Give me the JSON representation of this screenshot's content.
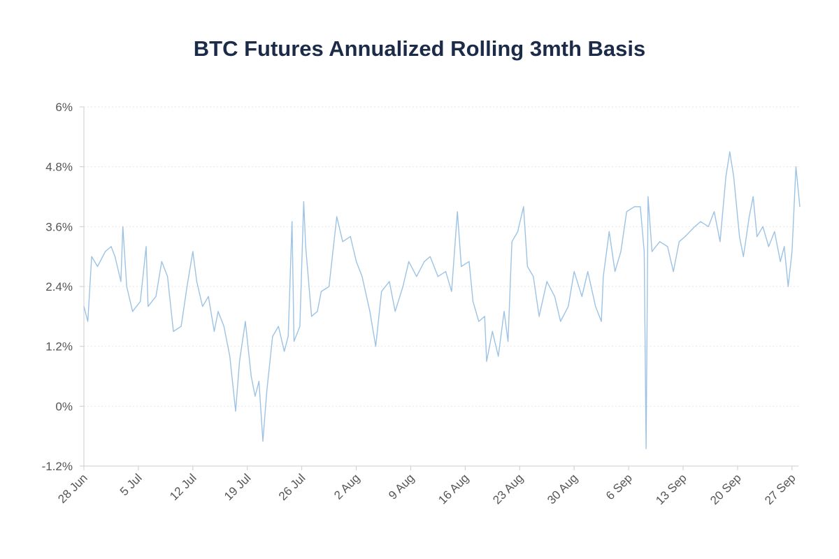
{
  "chart_data": {
    "type": "line",
    "title": "BTC Futures Annualized Rolling 3mth Basis",
    "xlabel": "",
    "ylabel": "",
    "ylim": [
      -1.2,
      6
    ],
    "yticks": [
      "-1.2%",
      "0%",
      "1.2%",
      "2.4%",
      "3.6%",
      "4.8%",
      "6%"
    ],
    "ytick_values": [
      -1.2,
      0,
      1.2,
      2.4,
      3.6,
      4.8,
      6
    ],
    "xticks": [
      "28 Jun",
      "5 Jul",
      "12 Jul",
      "19 Jul",
      "26 Jul",
      "2 Aug",
      "9 Aug",
      "16 Aug",
      "23 Aug",
      "30 Aug",
      "6 Sep",
      "13 Sep",
      "20 Sep",
      "27 Sep"
    ],
    "xtick_values": [
      "06-28 00",
      "07-05 00",
      "07-12 00",
      "07-19 00",
      "07-26 00",
      "08-02 00",
      "08-09 00",
      "08-16 00",
      "08-23 00",
      "08-30 00",
      "09-06 00",
      "09-13 00",
      "09-20 00",
      "09-27 00"
    ],
    "grid": "horizontal dotted",
    "line_color": "#9cc3e5",
    "title_color": "#1c2b48",
    "series": [
      {
        "x": [
          "06-28 00",
          "06-28 12",
          "06-29 00",
          "06-29 18",
          "06-30 18",
          "07-01 12",
          "07-02 00",
          "07-02 18",
          "07-03 00",
          "07-03 12",
          "07-04 06",
          "07-05 06",
          "07-06 00",
          "07-06 06",
          "07-07 06",
          "07-08 00",
          "07-08 18",
          "07-09 12",
          "07-10 12",
          "07-11 06",
          "07-12 00",
          "07-12 12",
          "07-13 06",
          "07-14 00",
          "07-14 18",
          "07-15 06",
          "07-16 00",
          "07-16 18",
          "07-17 12",
          "07-18 00",
          "07-18 18",
          "07-19 12",
          "07-20 00",
          "07-20 12",
          "07-21 00",
          "07-21 12",
          "07-22 06",
          "07-23 00",
          "07-23 18",
          "07-24 06",
          "07-24 18",
          "07-25 00",
          "07-25 18",
          "07-26 06",
          "07-26 12",
          "07-27 06",
          "07-28 00",
          "07-28 12",
          "07-29 12",
          "07-30 12",
          "07-31 06",
          "08-01 06",
          "08-02 00",
          "08-02 18",
          "08-03 18",
          "08-04 12",
          "08-05 06",
          "08-06 06",
          "08-07 00",
          "08-08 00",
          "08-08 18",
          "08-09 18",
          "08-10 18",
          "08-11 12",
          "08-12 12",
          "08-13 12",
          "08-14 06",
          "08-15 00",
          "08-15 12",
          "08-16 12",
          "08-17 00",
          "08-17 18",
          "08-18 12",
          "08-18 18",
          "08-19 12",
          "08-20 06",
          "08-21 00",
          "08-21 12",
          "08-22 00",
          "08-22 18",
          "08-23 12",
          "08-24 00",
          "08-24 18",
          "08-25 12",
          "08-26 12",
          "08-27 12",
          "08-28 06",
          "08-29 06",
          "08-30 00",
          "08-31 00",
          "08-31 18",
          "09-01 18",
          "09-02 12",
          "09-02 18",
          "09-03 12",
          "09-04 06",
          "09-05 00",
          "09-05 18",
          "09-06 18",
          "09-07 12",
          "09-08 00",
          "09-08 06",
          "09-08 12",
          "09-09 00",
          "09-10 00",
          "09-11 00",
          "09-11 18",
          "09-12 12",
          "09-13 06",
          "09-14 12",
          "09-15 06",
          "09-16 06",
          "09-17 00",
          "09-17 18",
          "09-18 12",
          "09-19 00",
          "09-19 12",
          "09-20 06",
          "09-20 18",
          "09-21 12",
          "09-22 00",
          "09-22 12",
          "09-23 06",
          "09-24 00",
          "09-24 18",
          "09-25 12",
          "09-26 00",
          "09-26 12",
          "09-27 00",
          "09-27 12",
          "09-28 00"
        ],
        "y": [
          2.0,
          1.7,
          3.0,
          2.8,
          3.1,
          3.2,
          3.0,
          2.5,
          3.6,
          2.4,
          1.9,
          2.1,
          3.2,
          2.0,
          2.2,
          2.9,
          2.6,
          1.5,
          1.6,
          2.4,
          3.1,
          2.5,
          2.0,
          2.2,
          1.5,
          1.9,
          1.6,
          1.0,
          -0.1,
          0.9,
          1.7,
          0.6,
          0.2,
          0.5,
          -0.7,
          0.3,
          1.4,
          1.6,
          1.1,
          1.4,
          3.7,
          1.3,
          1.6,
          4.1,
          3.2,
          1.8,
          1.9,
          2.3,
          2.4,
          3.8,
          3.3,
          3.4,
          2.9,
          2.6,
          1.9,
          1.2,
          2.3,
          2.5,
          1.9,
          2.4,
          2.9,
          2.6,
          2.9,
          3.0,
          2.6,
          2.7,
          2.3,
          3.9,
          2.8,
          2.9,
          2.1,
          1.7,
          1.8,
          0.9,
          1.5,
          1.0,
          1.9,
          1.3,
          3.3,
          3.5,
          4.0,
          2.8,
          2.6,
          1.8,
          2.5,
          2.2,
          1.7,
          2.0,
          2.7,
          2.2,
          2.7,
          2.0,
          1.7,
          2.6,
          3.5,
          2.7,
          3.1,
          3.9,
          4.0,
          4.0,
          3.1,
          -0.85,
          4.2,
          3.1,
          3.3,
          3.2,
          2.7,
          3.3,
          3.4,
          3.6,
          3.7,
          3.6,
          3.9,
          3.3,
          4.6,
          5.1,
          4.6,
          3.4,
          3.0,
          3.8,
          4.2,
          3.4,
          3.6,
          3.2,
          3.5,
          2.9,
          3.2,
          2.4,
          3.1,
          4.8,
          4.0
        ]
      }
    ]
  }
}
